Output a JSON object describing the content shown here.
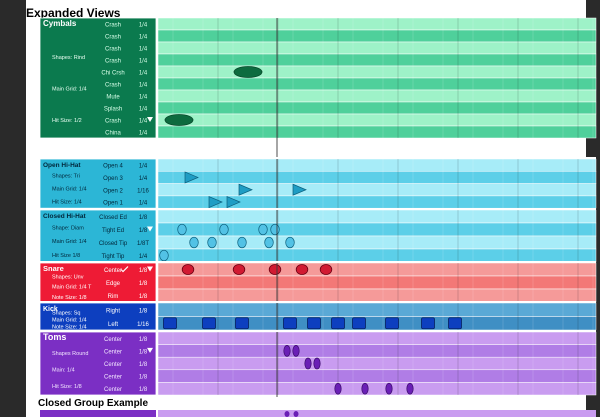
{
  "page": {
    "title": "Expanded Views",
    "footer_title": "Closed Group Example"
  },
  "colors": {
    "cymbals_panel": "#0b7a4e",
    "cymbals_row": "#9ef2c8",
    "cymbals_row_dark": "#4fd09b",
    "hihat_panel": "#2cb6d6",
    "hihat_row": "#a7ecf8",
    "hihat_row_dark": "#5ccfe8",
    "snare_panel": "#ee1b35",
    "snare_row": "#f59a99",
    "kick_panel": "#0d3fbf",
    "kick_row": "#5aa9d6",
    "toms_panel": "#7b2fc4",
    "toms_row": "#c99cf0"
  },
  "groups": [
    {
      "name": "Cymbals",
      "info": [
        "Shapes: Rind",
        "Main Grid: 1/4",
        "Hit Size: 1/2"
      ],
      "rows": [
        {
          "label": "Crash",
          "grid": "1/4"
        },
        {
          "label": "Crash",
          "grid": "1/4"
        },
        {
          "label": "Crash",
          "grid": "1/4"
        },
        {
          "label": "Crash",
          "grid": "1/4"
        },
        {
          "label": "Chi Crsh",
          "grid": "1/4"
        },
        {
          "label": "Crash",
          "grid": "1/4"
        },
        {
          "label": "Mute",
          "grid": "1/4"
        },
        {
          "label": "Splash",
          "grid": "1/4"
        },
        {
          "label": "Crash",
          "grid": "1/4"
        },
        {
          "label": "China",
          "grid": "1/4"
        }
      ]
    },
    {
      "name": "Open Hi-Hat",
      "info": [
        "Shapes: Tri",
        "Main Grid: 1/4",
        "Hit Size: 1/4"
      ],
      "rows": [
        {
          "label": "Open 4",
          "grid": "1/4"
        },
        {
          "label": "Open 3",
          "grid": "1/4"
        },
        {
          "label": "Open 2",
          "grid": "1/16"
        },
        {
          "label": "Open 1",
          "grid": "1/4"
        }
      ]
    },
    {
      "name": "Closed Hi-Hat",
      "info": [
        "Shape: Diam",
        "Main Grid: 1/4",
        "Hit Size 1/8"
      ],
      "rows": [
        {
          "label": "Closed Ed",
          "grid": "1/8"
        },
        {
          "label": "Tight Ed",
          "grid": "1/8"
        },
        {
          "label": "Closed Tip",
          "grid": "1/8T"
        },
        {
          "label": "Tight Tip",
          "grid": "1/4"
        }
      ]
    },
    {
      "name": "Snare",
      "info": [
        "Shapes: Unv",
        "Main Grid: 1/4 T",
        "Note Size: 1/8"
      ],
      "rows": [
        {
          "label": "Center",
          "grid": "1/8"
        },
        {
          "label": "Edge",
          "grid": "1/8"
        },
        {
          "label": "Rim",
          "grid": "1/8"
        }
      ]
    },
    {
      "name": "Kick",
      "info": [
        "Shapes: Sq",
        "Main Grid: 1/4",
        "Note Size: 1/4"
      ],
      "rows": [
        {
          "label": "Right",
          "grid": "1/8"
        },
        {
          "label": "Left",
          "grid": "1/16"
        }
      ]
    },
    {
      "name": "Toms",
      "info": [
        "Shapes Round",
        "Main: 1/4",
        "Hit Size: 1/8"
      ],
      "rows": [
        {
          "label": "Center",
          "grid": "1/8"
        },
        {
          "label": "Center",
          "grid": "1/8"
        },
        {
          "label": "Center",
          "grid": "1/8"
        },
        {
          "label": "Center",
          "grid": "1/8"
        },
        {
          "label": "Center",
          "grid": "1/8"
        }
      ]
    }
  ],
  "notes": {
    "cymbals": [
      {
        "row": 4,
        "beat": 1.5,
        "shape": "ellipse"
      },
      {
        "row": 8,
        "beat": 0.35,
        "shape": "ellipse"
      }
    ],
    "open_hihat": [
      {
        "row": 1,
        "beat": 0.55
      },
      {
        "row": 2,
        "beat": 1.45
      },
      {
        "row": 2,
        "beat": 2.35
      },
      {
        "row": 3,
        "beat": 0.95
      },
      {
        "row": 3,
        "beat": 1.25
      }
    ],
    "closed_hihat": [
      {
        "row": 1,
        "beat": 0.4
      },
      {
        "row": 1,
        "beat": 1.1
      },
      {
        "row": 1,
        "beat": 1.75
      },
      {
        "row": 1,
        "beat": 1.95
      },
      {
        "row": 2,
        "beat": 0.6
      },
      {
        "row": 2,
        "beat": 0.9
      },
      {
        "row": 2,
        "beat": 1.4
      },
      {
        "row": 2,
        "beat": 1.85
      },
      {
        "row": 2,
        "beat": 2.2
      },
      {
        "row": 3,
        "beat": 0.1
      }
    ],
    "snare": [
      {
        "row": 0,
        "beat": 0.5
      },
      {
        "row": 0,
        "beat": 1.35
      },
      {
        "row": 0,
        "beat": 1.95
      },
      {
        "row": 0,
        "beat": 2.4
      },
      {
        "row": 0,
        "beat": 2.8
      }
    ],
    "kick": [
      {
        "row": 1,
        "beat": 0.2
      },
      {
        "row": 1,
        "beat": 0.85
      },
      {
        "row": 1,
        "beat": 1.4
      },
      {
        "row": 1,
        "beat": 2.2
      },
      {
        "row": 1,
        "beat": 2.6
      },
      {
        "row": 1,
        "beat": 3.0
      },
      {
        "row": 1,
        "beat": 3.35
      },
      {
        "row": 1,
        "beat": 3.9
      },
      {
        "row": 1,
        "beat": 4.5
      },
      {
        "row": 1,
        "beat": 4.95
      }
    ],
    "toms": [
      {
        "row": 1,
        "beat": 2.15
      },
      {
        "row": 1,
        "beat": 2.3
      },
      {
        "row": 2,
        "beat": 2.5
      },
      {
        "row": 2,
        "beat": 2.65
      },
      {
        "row": 4,
        "beat": 3.0
      },
      {
        "row": 4,
        "beat": 3.45
      },
      {
        "row": 4,
        "beat": 3.85
      },
      {
        "row": 4,
        "beat": 4.2
      }
    ]
  }
}
